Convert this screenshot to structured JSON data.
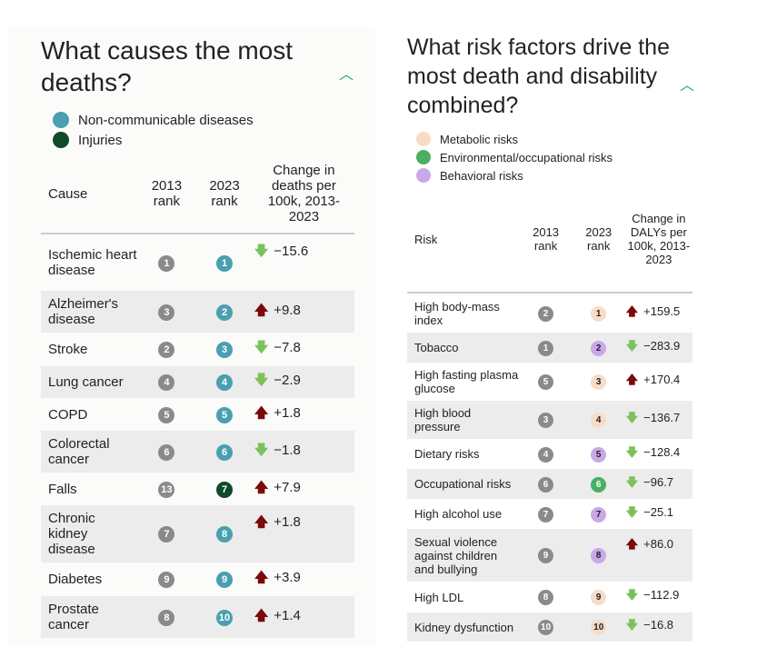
{
  "left": {
    "title": "What causes the most deaths?",
    "legend": [
      {
        "label": "Non-communicable diseases",
        "color": "#4a9fb0"
      },
      {
        "label": "Injuries",
        "color": "#0f4a2a"
      }
    ],
    "headers": [
      "Cause",
      "2013 rank",
      "2023 rank",
      "Change in deaths per 100k, 2013-2023"
    ],
    "rows": [
      {
        "name": "Ischemic heart disease",
        "r2013": "1",
        "r2023": "1",
        "cat": 0,
        "dir": "down",
        "change": "−15.6"
      },
      {
        "name": "Alzheimer's disease",
        "r2013": "3",
        "r2023": "2",
        "cat": 0,
        "dir": "up",
        "change": "+9.8"
      },
      {
        "name": "Stroke",
        "r2013": "2",
        "r2023": "3",
        "cat": 0,
        "dir": "down",
        "change": "−7.8"
      },
      {
        "name": "Lung cancer",
        "r2013": "4",
        "r2023": "4",
        "cat": 0,
        "dir": "down",
        "change": "−2.9"
      },
      {
        "name": "COPD",
        "r2013": "5",
        "r2023": "5",
        "cat": 0,
        "dir": "up",
        "change": "+1.8"
      },
      {
        "name": "Colorectal cancer",
        "r2013": "6",
        "r2023": "6",
        "cat": 0,
        "dir": "down",
        "change": "−1.8"
      },
      {
        "name": "Falls",
        "r2013": "13",
        "r2023": "7",
        "cat": 1,
        "dir": "up",
        "change": "+7.9"
      },
      {
        "name": "Chronic kidney disease",
        "r2013": "7",
        "r2023": "8",
        "cat": 0,
        "dir": "up",
        "change": "+1.8"
      },
      {
        "name": "Diabetes",
        "r2013": "9",
        "r2023": "9",
        "cat": 0,
        "dir": "up",
        "change": "+3.9"
      },
      {
        "name": "Prostate cancer",
        "r2013": "8",
        "r2023": "10",
        "cat": 0,
        "dir": "up",
        "change": "+1.4"
      }
    ]
  },
  "right": {
    "title": "What risk factors drive the most death and disability combined?",
    "legend": [
      {
        "label": "Metabolic risks",
        "color": "#f8dcc6"
      },
      {
        "label": "Environmental/occupational risks",
        "color": "#4caf60"
      },
      {
        "label": "Behavioral risks",
        "color": "#c9a8ea"
      }
    ],
    "headers": [
      "Risk",
      "2013 rank",
      "2023 rank",
      "Change in DALYs per 100k, 2013-2023"
    ],
    "rows": [
      {
        "name": "High body-mass index",
        "r2013": "2",
        "r2023": "1",
        "cat": 0,
        "dir": "up",
        "change": "+159.5"
      },
      {
        "name": "Tobacco",
        "r2013": "1",
        "r2023": "2",
        "cat": 2,
        "dir": "down",
        "change": "−283.9"
      },
      {
        "name": "High fasting plasma glucose",
        "r2013": "5",
        "r2023": "3",
        "cat": 0,
        "dir": "up",
        "change": "+170.4"
      },
      {
        "name": "High blood pressure",
        "r2013": "3",
        "r2023": "4",
        "cat": 0,
        "dir": "down",
        "change": "−136.7"
      },
      {
        "name": "Dietary risks",
        "r2013": "4",
        "r2023": "5",
        "cat": 2,
        "dir": "down",
        "change": "−128.4"
      },
      {
        "name": "Occupational risks",
        "r2013": "6",
        "r2023": "6",
        "cat": 1,
        "dir": "down",
        "change": "−96.7"
      },
      {
        "name": "High alcohol use",
        "r2013": "7",
        "r2023": "7",
        "cat": 2,
        "dir": "down",
        "change": "−25.1"
      },
      {
        "name": "Sexual violence against children and bullying",
        "r2013": "9",
        "r2023": "8",
        "cat": 2,
        "dir": "up",
        "change": "+86.0"
      },
      {
        "name": "High LDL",
        "r2013": "8",
        "r2023": "9",
        "cat": 0,
        "dir": "down",
        "change": "−112.9"
      },
      {
        "name": "Kidney dysfunction",
        "r2013": "10",
        "r2023": "10",
        "cat": 0,
        "dir": "down",
        "change": "−16.8"
      }
    ]
  },
  "colors": {
    "rank2013": "#8a8a8a",
    "up": "#7a0a0a",
    "down": "#7cc15a"
  }
}
